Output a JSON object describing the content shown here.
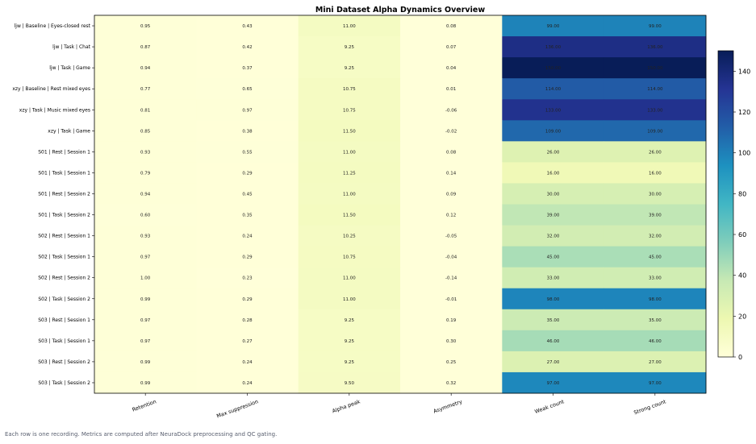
{
  "chart_data": {
    "type": "heatmap",
    "title": "Mini Dataset Alpha Dynamics Overview",
    "columns": [
      "Retention",
      "Max suppression",
      "Alpha peak",
      "Asymmetry",
      "Weak count",
      "Strong count"
    ],
    "rows": [
      "ljw | Baseline | Eyes-closed rest",
      "ljw | Task | Chat",
      "ljw | Task | Game",
      "xzy | Baseline | Rest mixed eyes",
      "xzy | Task | Music mixed eyes",
      "xzy | Task | Game",
      "S01 | Rest | Session 1",
      "S01 | Task | Session 1",
      "S01 | Rest | Session 2",
      "S01 | Task | Session 2",
      "S02 | Rest | Session 1",
      "S02 | Task | Session 1",
      "S02 | Rest | Session 2",
      "S02 | Task | Session 2",
      "S03 | Rest | Session 1",
      "S03 | Task | Session 1",
      "S03 | Rest | Session 2",
      "S03 | Task | Session 2"
    ],
    "values": [
      [
        0.95,
        0.43,
        11.0,
        0.08,
        99.0,
        99.0
      ],
      [
        0.87,
        0.42,
        9.25,
        0.07,
        136.0,
        136.0
      ],
      [
        0.94,
        0.37,
        9.25,
        0.04,
        150.0,
        150.0
      ],
      [
        0.77,
        0.65,
        10.75,
        0.01,
        114.0,
        114.0
      ],
      [
        0.81,
        0.97,
        10.75,
        -0.06,
        133.0,
        133.0
      ],
      [
        0.85,
        0.38,
        11.5,
        -0.02,
        109.0,
        109.0
      ],
      [
        0.93,
        0.55,
        11.0,
        0.08,
        26.0,
        26.0
      ],
      [
        0.79,
        0.29,
        11.25,
        0.14,
        16.0,
        16.0
      ],
      [
        0.94,
        0.45,
        11.0,
        0.09,
        30.0,
        30.0
      ],
      [
        0.6,
        0.35,
        11.5,
        0.12,
        39.0,
        39.0
      ],
      [
        0.93,
        0.24,
        10.25,
        -0.05,
        32.0,
        32.0
      ],
      [
        0.97,
        0.29,
        10.75,
        -0.04,
        45.0,
        45.0
      ],
      [
        1.0,
        0.23,
        11.0,
        -0.14,
        33.0,
        33.0
      ],
      [
        0.99,
        0.29,
        11.0,
        -0.01,
        98.0,
        98.0
      ],
      [
        0.97,
        0.28,
        9.25,
        0.19,
        35.0,
        35.0
      ],
      [
        0.97,
        0.27,
        9.25,
        0.3,
        46.0,
        46.0
      ],
      [
        0.99,
        0.24,
        9.25,
        0.25,
        27.0,
        27.0
      ],
      [
        0.99,
        0.24,
        9.5,
        0.32,
        97.0,
        97.0
      ]
    ],
    "colormap": "YlGnBu",
    "colorbar": {
      "range": [
        0,
        150
      ],
      "ticks": [
        0,
        20,
        40,
        60,
        80,
        100,
        120,
        140
      ]
    },
    "caption": "Each row is one recording. Metrics are computed after NeuraDock preprocessing and QC gating."
  }
}
